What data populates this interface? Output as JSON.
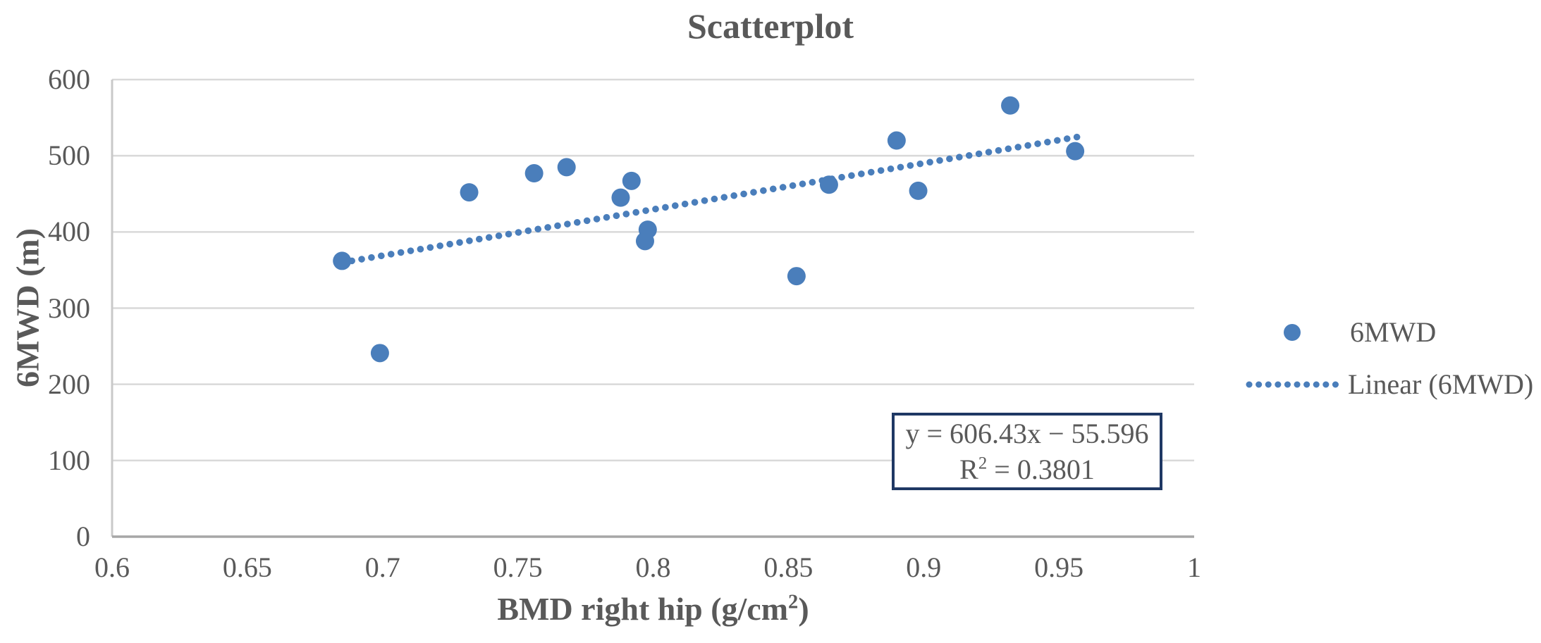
{
  "title": "Scatterplot",
  "y_axis": {
    "title": "6MWD (m)",
    "ticks": [
      "0",
      "100",
      "200",
      "300",
      "400",
      "500",
      "600"
    ]
  },
  "x_axis": {
    "title_prefix": "BMD right hip (g/cm",
    "title_sup": "2",
    "title_suffix": ")",
    "ticks": [
      "0.6",
      "0.65",
      "0.7",
      "0.75",
      "0.8",
      "0.85",
      "0.9",
      "0.95",
      "1"
    ]
  },
  "legend": {
    "points_label": "6MWD",
    "linear_label": "Linear (6MWD)"
  },
  "equation_box": {
    "line1": "y = 606.43x − 55.596",
    "r2_prefix": "R",
    "r2_sup": "2",
    "r2_suffix": " = 0.3801"
  },
  "colors": {
    "point": "#4a7ebb",
    "trendline": "#4a7ebb",
    "box_border": "#1f3864",
    "text": "#595959",
    "gridline": "#d9d9d9",
    "y_axis_line": "#c9c9c9",
    "x_axis_line": "#a6a6a6"
  },
  "chart_data": {
    "type": "scatter",
    "title": "Scatterplot",
    "xlabel": "BMD right hip (g/cm²)",
    "ylabel": "6MWD (m)",
    "xlim": [
      0.6,
      1.0
    ],
    "ylim": [
      0,
      600
    ],
    "xticks": [
      0.6,
      0.65,
      0.7,
      0.75,
      0.8,
      0.85,
      0.9,
      0.95,
      1
    ],
    "yticks": [
      0,
      100,
      200,
      300,
      400,
      500,
      600
    ],
    "grid": "horizontal-only",
    "legend_position": "right",
    "series": [
      {
        "name": "6MWD",
        "type": "points",
        "points": [
          [
            0.685,
            362
          ],
          [
            0.699,
            241
          ],
          [
            0.732,
            452
          ],
          [
            0.756,
            477
          ],
          [
            0.768,
            485
          ],
          [
            0.788,
            445
          ],
          [
            0.792,
            467
          ],
          [
            0.797,
            388
          ],
          [
            0.798,
            403
          ],
          [
            0.853,
            342
          ],
          [
            0.865,
            462
          ],
          [
            0.89,
            520
          ],
          [
            0.898,
            454
          ],
          [
            0.932,
            566
          ],
          [
            0.956,
            506
          ]
        ]
      },
      {
        "name": "Linear (6MWD)",
        "type": "linear-trendline",
        "style": "dotted",
        "slope": 606.43,
        "intercept": -55.596,
        "r_squared": 0.3801,
        "x_range": [
          0.685,
          0.957
        ],
        "equation_label": "y = 606.43x − 55.596",
        "r_squared_label": "R² = 0.3801"
      }
    ]
  }
}
